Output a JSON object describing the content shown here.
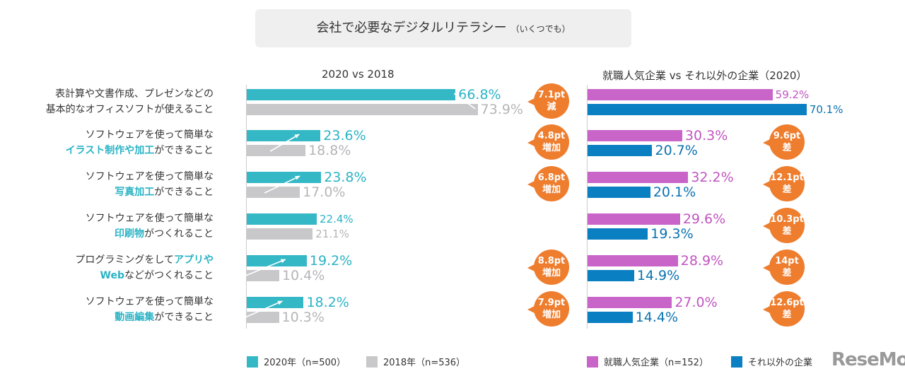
{
  "title": "会社で必要なデジタルリテラシー",
  "title_note": "（いくつでも）",
  "watermark": "ReseMom",
  "colors": {
    "y2020": "#35b8c6",
    "y2018": "#c8c8ca",
    "popular": "#c965c9",
    "other": "#0a7fc2",
    "bubble": "#ee7d2e"
  },
  "chart_data": [
    {
      "type": "bar",
      "orientation": "horizontal",
      "subtitle": "2020 vs 2018",
      "categories": [
        "表計算や文書作成、プレゼンなどの基本的なオフィスソフトが使えること",
        "ソフトウェアを使って簡単なイラスト制作や加工ができること",
        "ソフトウェアを使って簡単な写真加工ができること",
        "ソフトウェアを使って簡単な印刷物がつくれること",
        "プログラミングをしてアプリやWebなどがつくれること",
        "ソフトウェアを使って簡単な動画編集ができること"
      ],
      "series": [
        {
          "name": "2020年（n=500）",
          "values": [
            66.8,
            23.6,
            23.8,
            22.4,
            19.2,
            18.2
          ],
          "labels": [
            "66.8%",
            "23.6%",
            "23.8%",
            "22.4%",
            "19.2%",
            "18.2%"
          ]
        },
        {
          "name": "2018年（n=536）",
          "values": [
            73.9,
            18.8,
            17.0,
            21.1,
            10.4,
            10.3
          ],
          "labels": [
            "73.9%",
            "18.8%",
            "17.0%",
            "21.1%",
            "10.4%",
            "10.3%"
          ]
        }
      ],
      "annotations": [
        [
          "7.1pt",
          "減"
        ],
        [
          "4.8pt",
          "増加"
        ],
        [
          "6.8pt",
          "増加"
        ],
        null,
        [
          "8.8pt",
          "増加"
        ],
        [
          "7.9pt",
          "増加"
        ]
      ]
    },
    {
      "type": "bar",
      "orientation": "horizontal",
      "subtitle": "就職人気企業 vs それ以外の企業（2020）",
      "series": [
        {
          "name": "就職人気企業（n=152）",
          "values": [
            59.2,
            30.3,
            32.2,
            29.6,
            28.9,
            27.0
          ],
          "labels": [
            "59.2%",
            "30.3%",
            "32.2%",
            "29.6%",
            "28.9%",
            "27.0%"
          ]
        },
        {
          "name": "それ以外の企業",
          "values": [
            70.1,
            20.7,
            20.1,
            19.3,
            14.9,
            14.4
          ],
          "labels": [
            "70.1%",
            "20.7%",
            "20.1%",
            "19.3%",
            "14.9%",
            "14.4%"
          ]
        }
      ],
      "annotations": [
        null,
        [
          "9.6pt",
          "差"
        ],
        [
          "12.1pt",
          "差"
        ],
        [
          "10.3pt",
          "差"
        ],
        [
          "14pt",
          "差"
        ],
        [
          "12.6pt",
          "差"
        ]
      ]
    }
  ],
  "row_labels": [
    [
      [
        {
          "t": "表計算や文書作成、プレゼンなどの"
        }
      ],
      [
        {
          "t": "基本的なオフィスソフトが使えること"
        }
      ]
    ],
    [
      [
        {
          "t": "ソフトウェアを使って簡単な"
        }
      ],
      [
        {
          "t": "イラスト制作や加工",
          "hl": true
        },
        {
          "t": "ができること"
        }
      ]
    ],
    [
      [
        {
          "t": "ソフトウェアを使って簡単な"
        }
      ],
      [
        {
          "t": "写真加工",
          "hl": true
        },
        {
          "t": "ができること"
        }
      ]
    ],
    [
      [
        {
          "t": "ソフトウェアを使って簡単な"
        }
      ],
      [
        {
          "t": "印刷物",
          "hl": true
        },
        {
          "t": "がつくれること"
        }
      ]
    ],
    [
      [
        {
          "t": "プログラミングをして"
        },
        {
          "t": "アプリや",
          "hl": true
        }
      ],
      [
        {
          "t": "Web",
          "hl": true
        },
        {
          "t": "などがつくれること"
        }
      ]
    ],
    [
      [
        {
          "t": "ソフトウェアを使って簡単な"
        }
      ],
      [
        {
          "t": "動画編集",
          "hl": true
        },
        {
          "t": "ができること"
        }
      ]
    ]
  ]
}
